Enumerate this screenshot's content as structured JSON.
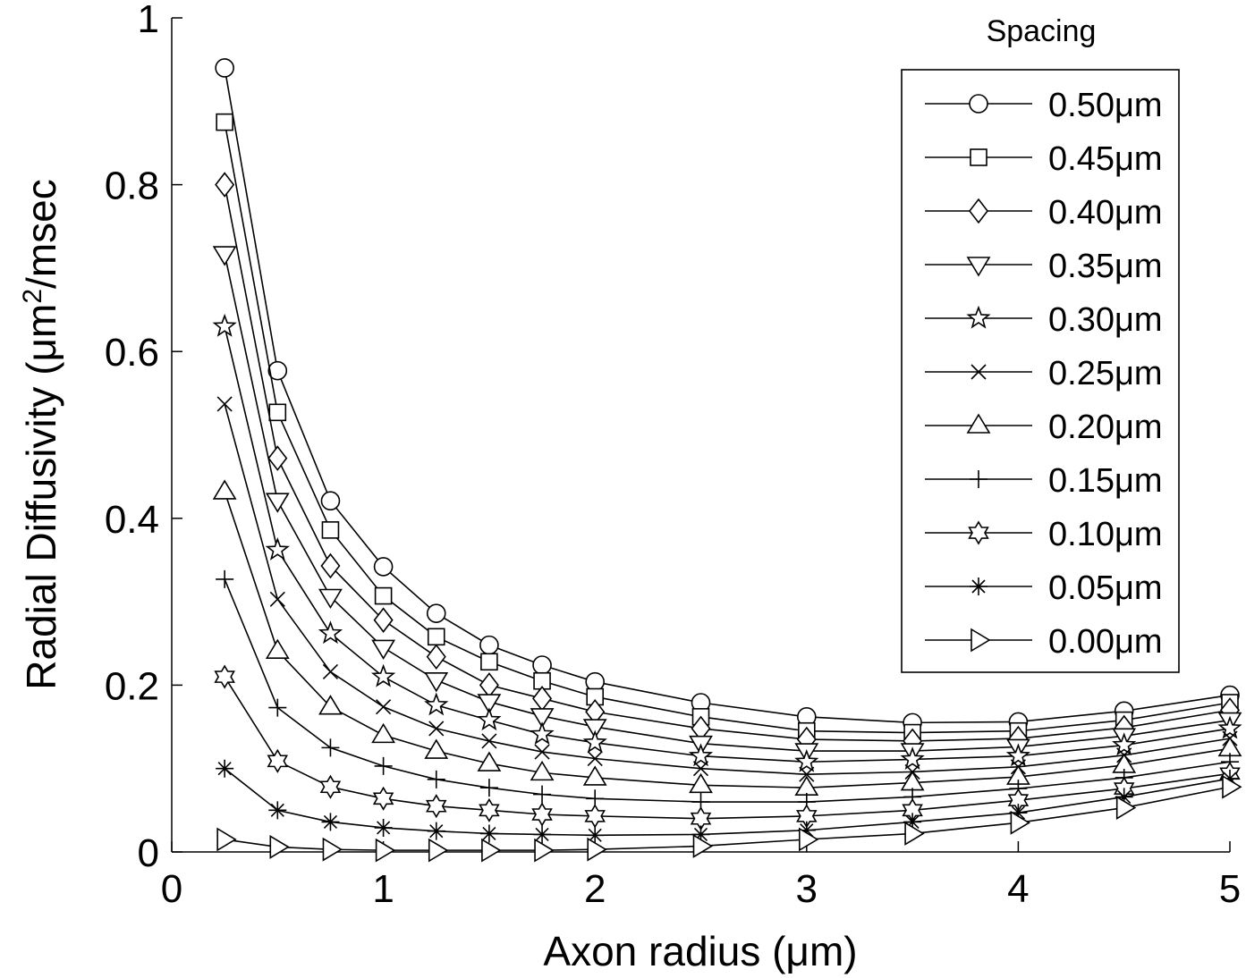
{
  "chart_data": {
    "type": "line",
    "xlabel": "Axon radius (μm)",
    "ylabel_main": "Radial Diffusivity (μm",
    "ylabel_sup": "2",
    "ylabel_tail": "/msec",
    "xlim": [
      0,
      5
    ],
    "ylim": [
      0,
      1
    ],
    "xticks": [
      0,
      1,
      2,
      3,
      4,
      5
    ],
    "yticks": [
      0,
      0.2,
      0.4,
      0.6,
      0.8,
      1
    ],
    "xtick_labels": [
      "0",
      "1",
      "2",
      "3",
      "4",
      "5"
    ],
    "ytick_labels": [
      "0",
      "0.2",
      "0.4",
      "0.6",
      "0.8",
      "1"
    ],
    "grid": false,
    "legend_title": "Spacing",
    "legend_placement": "top-right",
    "x": [
      0.25,
      0.5,
      0.75,
      1.0,
      1.25,
      1.5,
      1.75,
      2.0,
      2.5,
      3.0,
      3.5,
      4.0,
      4.5,
      5.0
    ],
    "series": [
      {
        "name": "0.50μm",
        "marker": "circle",
        "values": [
          0.94,
          0.577,
          0.421,
          0.342,
          0.286,
          0.248,
          0.224,
          0.204,
          0.179,
          0.162,
          0.155,
          0.156,
          0.169,
          0.188
        ]
      },
      {
        "name": "0.45μm",
        "marker": "square",
        "values": [
          0.875,
          0.527,
          0.386,
          0.307,
          0.258,
          0.228,
          0.205,
          0.186,
          0.162,
          0.145,
          0.143,
          0.145,
          0.158,
          0.179
        ]
      },
      {
        "name": "0.40μm",
        "marker": "diamond",
        "values": [
          0.8,
          0.472,
          0.343,
          0.278,
          0.234,
          0.2,
          0.184,
          0.168,
          0.148,
          0.135,
          0.133,
          0.136,
          0.149,
          0.17
        ]
      },
      {
        "name": "0.35μm",
        "marker": "tri-down",
        "values": [
          0.717,
          0.421,
          0.306,
          0.245,
          0.206,
          0.18,
          0.163,
          0.15,
          0.13,
          0.121,
          0.121,
          0.126,
          0.139,
          0.158
        ]
      },
      {
        "name": "0.30μm",
        "marker": "pentagram",
        "values": [
          0.63,
          0.362,
          0.262,
          0.21,
          0.176,
          0.158,
          0.141,
          0.131,
          0.115,
          0.108,
          0.111,
          0.115,
          0.128,
          0.148
        ]
      },
      {
        "name": "0.25μm",
        "marker": "x",
        "values": [
          0.537,
          0.303,
          0.216,
          0.174,
          0.148,
          0.133,
          0.12,
          0.112,
          0.1,
          0.093,
          0.096,
          0.102,
          0.116,
          0.136
        ]
      },
      {
        "name": "0.20μm",
        "marker": "tri-up",
        "values": [
          0.432,
          0.241,
          0.174,
          0.14,
          0.121,
          0.106,
          0.095,
          0.089,
          0.08,
          0.077,
          0.083,
          0.09,
          0.104,
          0.124
        ]
      },
      {
        "name": "0.15μm",
        "marker": "plus",
        "values": [
          0.327,
          0.173,
          0.125,
          0.103,
          0.087,
          0.077,
          0.069,
          0.064,
          0.06,
          0.06,
          0.066,
          0.076,
          0.089,
          0.108
        ]
      },
      {
        "name": "0.10μm",
        "marker": "hexagram",
        "values": [
          0.21,
          0.109,
          0.078,
          0.064,
          0.055,
          0.05,
          0.045,
          0.043,
          0.04,
          0.043,
          0.05,
          0.062,
          0.076,
          0.094
        ]
      },
      {
        "name": "0.05μm",
        "marker": "asterisk",
        "values": [
          0.1,
          0.05,
          0.036,
          0.029,
          0.025,
          0.022,
          0.021,
          0.02,
          0.021,
          0.026,
          0.036,
          0.047,
          0.066,
          0.088
        ]
      },
      {
        "name": "0.00μm",
        "marker": "tri-right",
        "values": [
          0.015,
          0.006,
          0.003,
          0.002,
          0.002,
          0.002,
          0.002,
          0.003,
          0.007,
          0.015,
          0.022,
          0.035,
          0.053,
          0.078
        ]
      }
    ]
  }
}
